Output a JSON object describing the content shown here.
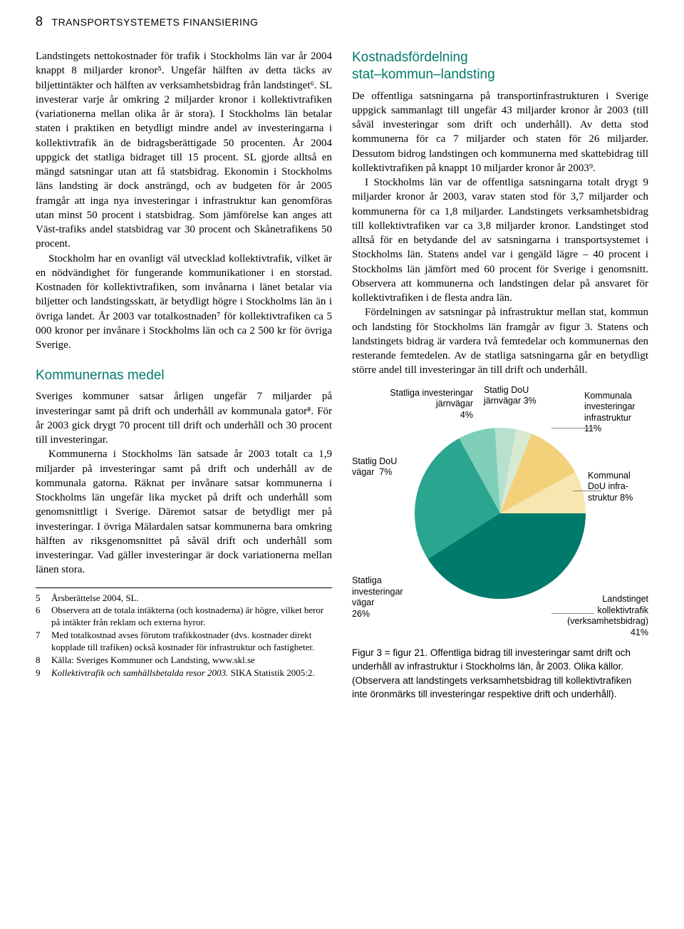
{
  "header": {
    "page_number": "8",
    "title": "TRANSPORTSYSTEMETS FINANSIERING"
  },
  "left": {
    "p1": "Landstingets nettokostnader för trafik i Stockholms län var år 2004 knappt 8 miljarder kronor⁵. Ungefär hälften av detta täcks av biljettintäkter och hälften av verksamhetsbidrag från landstinget⁶. SL investerar varje år omkring 2 miljarder kronor i kollektivtrafiken (variationerna mellan olika år är stora). I Stockholms län betalar staten i praktiken en betydligt mindre andel av investeringarna i kollektivtrafik än de bidragsberättigade 50 procenten. År 2004 uppgick det statliga bidraget till 15 procent. SL gjorde alltså en mängd satsningar utan att få statsbidrag. Ekonomin i Stockholms läns landsting är dock ansträngd, och av budgeten för år 2005 framgår att inga nya investeringar i infrastruktur kan genomföras utan minst 50 procent i statsbidrag. Som jämförelse kan anges att Väst-trafiks andel statsbidrag var 30 procent och Skånetrafikens 50 procent.",
    "p2": "Stockholm har en ovanligt väl utvecklad kollektivtrafik, vilket är en nödvändighet för fungerande kommunikationer i en storstad. Kostnaden för kollektivtrafiken, som invånarna i länet betalar via biljetter och landstingsskatt, är betydligt högre i Stockholms län än i övriga landet. År 2003 var totalkostnaden⁷ för kollektivtrafiken ca 5 000 kronor per invånare i Stockholms län och ca 2 500 kr för övriga Sverige.",
    "h2": "Kommunernas medel",
    "p3": "Sveriges kommuner satsar årligen ungefär 7 miljarder på investeringar samt på drift och underhåll av kommunala gator⁸. För år 2003 gick drygt 70 procent till drift och underhåll och 30 procent till investeringar.",
    "p4": "Kommunerna i Stockholms län satsade år 2003 totalt ca 1,9 miljarder på investeringar samt på drift och underhåll av de kommunala gatorna. Räknat per invånare satsar kommunerna i Stockholms län ungefär lika mycket på drift och underhåll som genomsnittligt i Sverige. Däremot satsar de betydligt mer på investeringar. I övriga Mälardalen satsar kommunerna bara omkring hälften av riksgenomsnittet på såväl drift och underhåll som investeringar. Vad gäller investeringar är dock variationerna mellan länen stora."
  },
  "right": {
    "h1a": "Kostnadsfördelning",
    "h1b": "stat–kommun–landsting",
    "p1": "De offentliga satsningarna på transportinfrastrukturen i Sverige uppgick sammanlagt till ungefär 43 miljarder kronor år 2003 (till såväl investeringar som drift och underhåll). Av detta stod kommunerna för ca 7 miljarder och staten för 26 miljarder. Dessutom bidrog landstingen och kommunerna med skattebidrag till kollektivtrafiken på knappt 10 miljarder kronor år 2003⁹.",
    "p2": "I Stockholms län var de offentliga satsningarna totalt drygt 9 miljarder kronor år 2003, varav staten stod för 3,7 miljarder och kommunerna för ca 1,8 miljarder. Landstingets verksamhetsbidrag till kollektivtrafiken var ca 3,8 miljarder kronor. Landstinget stod alltså för en betydande del av satsningarna i transportsystemet i Stockholms län. Statens andel var i gengäld lägre – 40 procent i Stockholms län jämfört med 60 procent för Sverige i genomsnitt. Observera att kommunerna och landstingen delar på ansvaret för kollektivtrafiken i de flesta andra län.",
    "p3": "Fördelningen av satsningar på infrastruktur mellan stat, kommun och landsting för Stockholms län framgår av figur 3. Statens och landstingets bidrag är vardera två femtedelar och kommunernas den resterande femtedelen. Av de statliga satsningarna går en betydligt större andel till investeringar än till drift och underhåll."
  },
  "footnotes": [
    {
      "n": "5",
      "t": "Årsberättelse 2004, SL."
    },
    {
      "n": "6",
      "t": "Observera att de totala intäkterna (och kostnaderna) är högre, vilket beror på intäkter från reklam och externa hyror."
    },
    {
      "n": "7",
      "t": "Med totalkostnad avses förutom trafikkostnader (dvs. kostnader direkt kopplade till trafiken) också kostnader för infrastruktur och fastigheter."
    },
    {
      "n": "8",
      "t": "Källa: Sveriges Kommuner och Landsting, www.skl.se"
    },
    {
      "n": "9",
      "t": "Kollektivtrafik och samhällsbetalda resor 2003. SIKA Statistik 2005:2.",
      "italic_prefix": "Kollektivtrafik och samhällsbetalda resor 2003."
    }
  ],
  "chart": {
    "type": "pie",
    "segments": [
      {
        "label": "Landstinget kollektivtrafik (verksamhetsbidrag) 41%",
        "value": 41,
        "color": "#007a6a"
      },
      {
        "label": "Statliga investeringar vägar 26%",
        "value": 26,
        "color": "#2aa58f"
      },
      {
        "label": "Statlig DoU vägar 7%",
        "value": 7,
        "color": "#7fcfb8"
      },
      {
        "label": "Statliga investeringar järnvägar 4%",
        "value": 4,
        "color": "#b8e0cf"
      },
      {
        "label": "Statlig DoU järnvägar 3%",
        "value": 3,
        "color": "#d9ead3"
      },
      {
        "label": "Kommunala investeringar infrastruktur 11%",
        "value": 11,
        "color": "#f3d17a"
      },
      {
        "label": "Kommunal DoU infrastruktur 8%",
        "value": 8,
        "color": "#f7e6b0"
      }
    ],
    "labels": {
      "l_landsting": "Landstinget\nkollektivtrafik\n(verksamhetsbidrag)\n41%",
      "l_stat_inv_vag": "Statliga\ninvesteringar\nvägar\n26%",
      "l_stat_dou_vag": "Statlig DoU\nvägar  7%",
      "l_stat_inv_jarn": "Statliga investeringar\njärnvägar\n4%",
      "l_stat_dou_jarn": "Statlig DoU\njärnvägar 3%",
      "l_komm_inv": "Kommunala\ninvesteringar\ninfrastruktur\n11%",
      "l_komm_dou": "Kommunal\nDoU infra-\nstruktur 8%"
    },
    "caption": "Figur 3 = figur 21. Offentliga bidrag till investeringar samt drift och underhåll av infrastruktur i Stockholms län, år 2003. Olika källor. (Observera att landstingets verksamhetsbidrag till kollektivtrafiken inte öronmärks till investeringar respektive drift och underhåll)."
  },
  "colors": {
    "heading": "#007a6a"
  }
}
